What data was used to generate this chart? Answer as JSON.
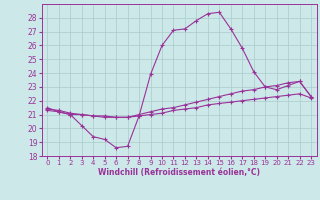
{
  "title": "",
  "xlabel": "Windchill (Refroidissement éolien,°C)",
  "ylabel": "",
  "xlim": [
    -0.5,
    23.5
  ],
  "ylim": [
    18,
    29
  ],
  "yticks": [
    18,
    19,
    20,
    21,
    22,
    23,
    24,
    25,
    26,
    27,
    28
  ],
  "xticks": [
    0,
    1,
    2,
    3,
    4,
    5,
    6,
    7,
    8,
    9,
    10,
    11,
    12,
    13,
    14,
    15,
    16,
    17,
    18,
    19,
    20,
    21,
    22,
    23
  ],
  "bg_color": "#cde8e8",
  "grid_color": "#aacccc",
  "line_color": "#993399",
  "line1_x": [
    0,
    1,
    2,
    3,
    4,
    5,
    6,
    7,
    8,
    9,
    10,
    11,
    12,
    13,
    14,
    15,
    16,
    17,
    18,
    19,
    20,
    21,
    22,
    23
  ],
  "line1_y": [
    21.5,
    21.2,
    21.0,
    20.2,
    19.4,
    19.2,
    18.6,
    18.7,
    20.9,
    23.9,
    26.0,
    27.1,
    27.2,
    27.8,
    28.3,
    28.4,
    27.2,
    25.8,
    24.1,
    23.0,
    22.8,
    23.1,
    23.4,
    22.3
  ],
  "line2_x": [
    0,
    1,
    2,
    3,
    4,
    5,
    6,
    7,
    8,
    9,
    10,
    11,
    12,
    13,
    14,
    15,
    16,
    17,
    18,
    19,
    20,
    21,
    22,
    23
  ],
  "line2_y": [
    21.3,
    21.2,
    21.0,
    21.0,
    20.9,
    20.8,
    20.8,
    20.8,
    21.0,
    21.2,
    21.4,
    21.5,
    21.7,
    21.9,
    22.1,
    22.3,
    22.5,
    22.7,
    22.8,
    23.0,
    23.1,
    23.3,
    23.4,
    22.3
  ],
  "line3_x": [
    0,
    1,
    2,
    3,
    4,
    5,
    6,
    7,
    8,
    9,
    10,
    11,
    12,
    13,
    14,
    15,
    16,
    17,
    18,
    19,
    20,
    21,
    22,
    23
  ],
  "line3_y": [
    21.4,
    21.3,
    21.1,
    21.0,
    20.9,
    20.9,
    20.8,
    20.8,
    20.9,
    21.0,
    21.1,
    21.3,
    21.4,
    21.5,
    21.7,
    21.8,
    21.9,
    22.0,
    22.1,
    22.2,
    22.3,
    22.4,
    22.5,
    22.2
  ]
}
